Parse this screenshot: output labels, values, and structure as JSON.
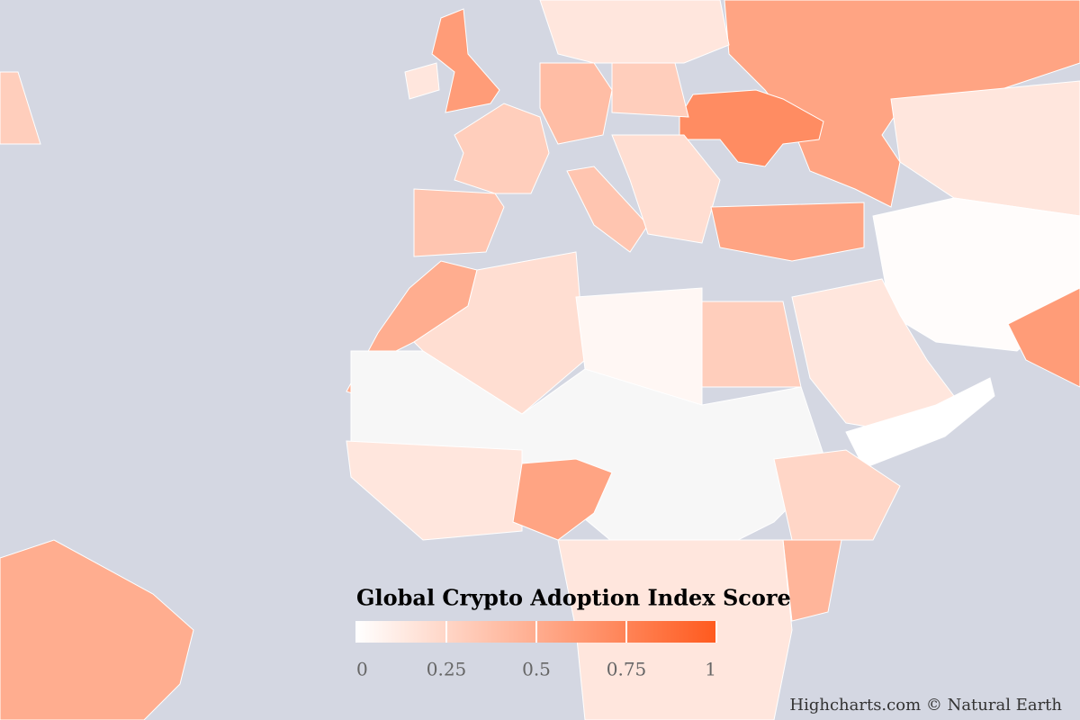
{
  "chart_data": {
    "type": "map",
    "legend_title": "Global Crypto Adoption Index Score",
    "credits": "Highcharts.com © Natural Earth",
    "values": [
      0.55,
      0.7,
      0.6,
      0.15,
      0.3,
      0.35,
      0.4,
      0.3,
      0.15,
      0.35,
      0.2,
      0.55,
      0.15,
      0.02,
      0.6,
      0.15,
      0.0,
      0.5,
      0.2,
      0.05,
      0.3,
      null,
      0.15,
      0.55,
      0.25,
      0.45,
      0.15,
      0.5,
      0.3
    ],
    "clim": [
      0,
      1
    ],
    "cticks": [
      0,
      0.25,
      0.5,
      0.75,
      1
    ],
    "min_color": "#ffffff",
    "max_color": "#ff5a1e",
    "null_color": "#f7f7f7",
    "ocean_color": "#d4d7e2"
  }
}
